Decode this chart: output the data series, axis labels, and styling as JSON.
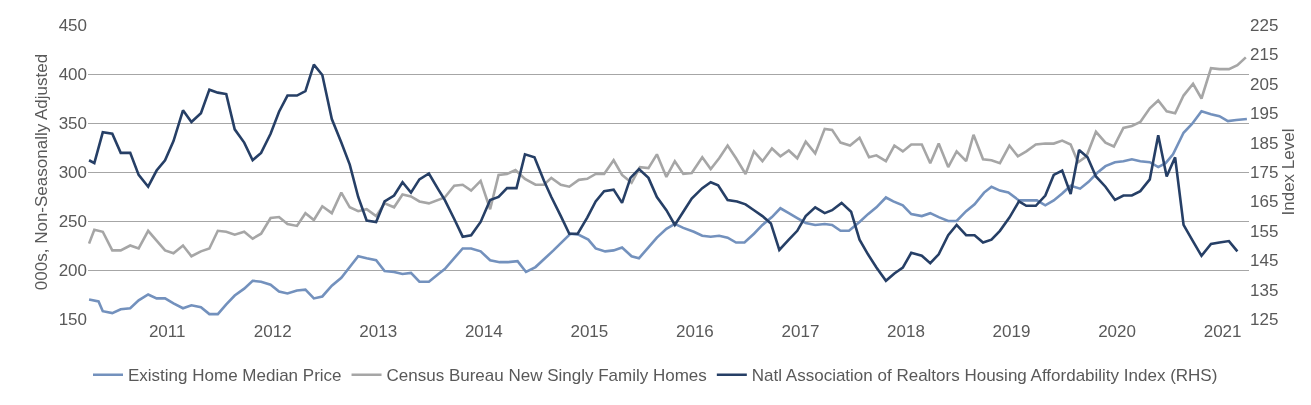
{
  "chart_data": {
    "type": "line",
    "ylabel": "000s, Non-Seasonally Adjusted",
    "y2label": "Index Level",
    "xlim": [
      2010.25,
      2021.25
    ],
    "xticks": [
      2011,
      2012,
      2013,
      2014,
      2015,
      2016,
      2017,
      2018,
      2019,
      2020,
      2021
    ],
    "ylim": [
      150,
      450
    ],
    "yticks": [
      150,
      200,
      250,
      300,
      350,
      400,
      450
    ],
    "y2lim": [
      125,
      225
    ],
    "y2ticks": [
      125,
      135,
      145,
      155,
      165,
      175,
      185,
      195,
      205,
      215,
      225
    ],
    "grid": "y",
    "legend": "bottom",
    "marker": "none",
    "line_style": "solid",
    "series": [
      {
        "name": "Existing Home Median Price",
        "color": "#7391bd",
        "x": [
          2010.26,
          2010.35,
          2010.39,
          2010.48,
          2010.56,
          2010.65,
          2010.73,
          2010.82,
          2010.9,
          2010.98,
          2011.06,
          2011.15,
          2011.23,
          2011.32,
          2011.4,
          2011.48,
          2011.56,
          2011.64,
          2011.73,
          2011.81,
          2011.89,
          2011.98,
          2012.06,
          2012.14,
          2012.23,
          2012.31,
          2012.39,
          2012.47,
          2012.56,
          2012.65,
          2012.73,
          2012.81,
          2012.89,
          2012.98,
          2013.06,
          2013.15,
          2013.23,
          2013.31,
          2013.39,
          2013.48,
          2013.57,
          2013.63,
          2013.8,
          2013.88,
          2013.97,
          2014.06,
          2014.15,
          2014.23,
          2014.32,
          2014.4,
          2014.49,
          2014.66,
          2014.82,
          2014.9,
          2014.99,
          2015.06,
          2015.15,
          2015.23,
          2015.31,
          2015.4,
          2015.47,
          2015.56,
          2015.64,
          2015.73,
          2015.81,
          2015.89,
          2015.99,
          2016.07,
          2016.15,
          2016.23,
          2016.31,
          2016.39,
          2016.47,
          2016.56,
          2016.64,
          2016.73,
          2016.81,
          2016.89,
          2016.97,
          2017.05,
          2017.14,
          2017.23,
          2017.3,
          2017.38,
          2017.46,
          2017.56,
          2017.64,
          2017.72,
          2017.81,
          2017.88,
          2017.97,
          2018.05,
          2018.15,
          2018.23,
          2018.31,
          2018.4,
          2018.48,
          2018.57,
          2018.65,
          2018.74,
          2018.81,
          2018.89,
          2018.97,
          2019.07,
          2019.15,
          2019.24,
          2019.32,
          2019.4,
          2019.48,
          2019.56,
          2019.65,
          2019.73,
          2019.81,
          2019.89,
          2019.98,
          2020.06,
          2020.14,
          2020.22,
          2020.31,
          2020.39,
          2020.46,
          2020.53,
          2020.63,
          2020.71,
          2020.8,
          2020.89,
          2020.97,
          2021.05,
          2021.13,
          2021.23
        ],
        "values": [
          170,
          168,
          158,
          156,
          160,
          161,
          169,
          175,
          171,
          171,
          166,
          161,
          164,
          162,
          155,
          155,
          165,
          174,
          181,
          189,
          188,
          185,
          178,
          176,
          179,
          180,
          171,
          173,
          184,
          192,
          203,
          214,
          212,
          210,
          199,
          198,
          196,
          197,
          188,
          188,
          196,
          201,
          222,
          222,
          219,
          210,
          208,
          208,
          209,
          198,
          203,
          220,
          237,
          236,
          231,
          222,
          219,
          220,
          223,
          214,
          212,
          223,
          233,
          242,
          247,
          243,
          239,
          235,
          234,
          235,
          233,
          228,
          228,
          237,
          246,
          254,
          263,
          258,
          253,
          248,
          246,
          247,
          246,
          240,
          240,
          249,
          257,
          264,
          274,
          270,
          266,
          257,
          255,
          258,
          254,
          250,
          250,
          260,
          267,
          279,
          285,
          281,
          279,
          271,
          271,
          271,
          266,
          271,
          278,
          286,
          283,
          290,
          299,
          306,
          310,
          311,
          313,
          311,
          310,
          305,
          309,
          318,
          340,
          349,
          362,
          359,
          357,
          352,
          353,
          354
        ]
      },
      {
        "name": "Census Bureau New Singly Family Homes",
        "color": "#a6a6a6",
        "x": [
          2010.26,
          2010.31,
          2010.39,
          2010.48,
          2010.56,
          2010.65,
          2010.73,
          2010.82,
          2010.9,
          2010.98,
          2011.06,
          2011.15,
          2011.23,
          2011.32,
          2011.4,
          2011.48,
          2011.56,
          2011.64,
          2011.73,
          2011.81,
          2011.89,
          2011.98,
          2012.06,
          2012.14,
          2012.23,
          2012.31,
          2012.39,
          2012.47,
          2012.56,
          2012.65,
          2012.73,
          2012.81,
          2012.89,
          2012.98,
          2013.06,
          2013.15,
          2013.23,
          2013.31,
          2013.39,
          2013.48,
          2013.63,
          2013.72,
          2013.8,
          2013.88,
          2013.97,
          2014.06,
          2014.14,
          2014.22,
          2014.3,
          2014.39,
          2014.49,
          2014.57,
          2014.64,
          2014.73,
          2014.81,
          2014.9,
          2014.98,
          2015.06,
          2015.14,
          2015.23,
          2015.31,
          2015.4,
          2015.48,
          2015.56,
          2015.64,
          2015.73,
          2015.81,
          2015.89,
          2015.97,
          2016.07,
          2016.15,
          2016.23,
          2016.31,
          2016.39,
          2016.48,
          2016.56,
          2016.64,
          2016.73,
          2016.81,
          2016.89,
          2016.97,
          2017.05,
          2017.14,
          2017.23,
          2017.3,
          2017.38,
          2017.47,
          2017.56,
          2017.65,
          2017.72,
          2017.81,
          2017.89,
          2017.97,
          2018.05,
          2018.15,
          2018.23,
          2018.31,
          2018.4,
          2018.48,
          2018.57,
          2018.64,
          2018.73,
          2018.81,
          2018.89,
          2018.98,
          2019.06,
          2019.14,
          2019.23,
          2019.32,
          2019.4,
          2019.48,
          2019.56,
          2019.63,
          2019.71,
          2019.8,
          2019.89,
          2019.97,
          2020.06,
          2020.14,
          2020.22,
          2020.31,
          2020.39,
          2020.47,
          2020.55,
          2020.63,
          2020.72,
          2020.8,
          2020.89,
          2020.97,
          2021.06,
          2021.14,
          2021.22
        ],
        "values": [
          227,
          241,
          239,
          220,
          220,
          225,
          222,
          240,
          230,
          220,
          217,
          225,
          214,
          219,
          222,
          240,
          239,
          236,
          239,
          232,
          237,
          253,
          254,
          247,
          245,
          258,
          251,
          265,
          258,
          279,
          264,
          260,
          262,
          255,
          268,
          264,
          277,
          275,
          270,
          268,
          274,
          286,
          287,
          281,
          291,
          262,
          297,
          298,
          302,
          293,
          287,
          287,
          294,
          287,
          285,
          292,
          293,
          298,
          298,
          312,
          297,
          289,
          305,
          304,
          318,
          295,
          311,
          298,
          299,
          315,
          303,
          314,
          327,
          314,
          298,
          321,
          311,
          324,
          316,
          322,
          314,
          331,
          319,
          344,
          343,
          330,
          327,
          335,
          315,
          317,
          311,
          327,
          321,
          328,
          328,
          309,
          329,
          305,
          321,
          311,
          338,
          313,
          312,
          309,
          327,
          316,
          321,
          328,
          329,
          329,
          332,
          328,
          310,
          316,
          341,
          330,
          326,
          345,
          347,
          351,
          365,
          373,
          362,
          360,
          378,
          390,
          375,
          406,
          405,
          405,
          409,
          417
        ]
      },
      {
        "name": "Natl Association of Realtors Housing Affordability Index (RHS)",
        "color": "#263f66",
        "axis": "y2",
        "x": [
          2010.26,
          2010.31,
          2010.39,
          2010.48,
          2010.56,
          2010.65,
          2010.73,
          2010.82,
          2010.9,
          2010.98,
          2011.06,
          2011.15,
          2011.23,
          2011.32,
          2011.4,
          2011.48,
          2011.56,
          2011.64,
          2011.73,
          2011.81,
          2011.89,
          2011.98,
          2012.06,
          2012.14,
          2012.23,
          2012.31,
          2012.39,
          2012.47,
          2012.56,
          2012.65,
          2012.73,
          2012.81,
          2012.89,
          2012.98,
          2013.06,
          2013.15,
          2013.23,
          2013.31,
          2013.39,
          2013.48,
          2013.57,
          2013.63,
          2013.72,
          2013.8,
          2013.88,
          2013.97,
          2014.06,
          2014.14,
          2014.22,
          2014.31,
          2014.39,
          2014.48,
          2014.57,
          2014.64,
          2014.73,
          2014.81,
          2014.89,
          2014.98,
          2015.06,
          2015.14,
          2015.23,
          2015.31,
          2015.39,
          2015.47,
          2015.56,
          2015.64,
          2015.73,
          2015.81,
          2015.89,
          2015.97,
          2016.07,
          2016.15,
          2016.22,
          2016.31,
          2016.4,
          2016.48,
          2016.56,
          2016.64,
          2016.72,
          2016.8,
          2016.89,
          2016.97,
          2017.05,
          2017.14,
          2017.23,
          2017.3,
          2017.39,
          2017.48,
          2017.56,
          2017.64,
          2017.72,
          2017.81,
          2017.89,
          2017.97,
          2018.05,
          2018.15,
          2018.23,
          2018.31,
          2018.4,
          2018.48,
          2018.57,
          2018.65,
          2018.73,
          2018.81,
          2018.89,
          2018.98,
          2019.07,
          2019.14,
          2019.23,
          2019.32,
          2019.4,
          2019.48,
          2019.56,
          2019.64,
          2019.72,
          2019.8,
          2019.89,
          2019.98,
          2020.06,
          2020.14,
          2020.22,
          2020.31,
          2020.39,
          2020.47,
          2020.55,
          2020.63,
          2020.71,
          2020.8,
          2020.89,
          2020.97,
          2021.06,
          2021.14
        ],
        "values": [
          179,
          178,
          188.5,
          188,
          181.5,
          181.5,
          174,
          170,
          175.5,
          179,
          185.5,
          196,
          192,
          195,
          203,
          202,
          201.5,
          189.5,
          185,
          179,
          181.5,
          188,
          195.5,
          201,
          201,
          202.5,
          211.5,
          208,
          193,
          185,
          177.5,
          166.5,
          158.5,
          158,
          165,
          167,
          171.5,
          168,
          172.5,
          174.5,
          169,
          165.5,
          159,
          153,
          153.5,
          158,
          165.5,
          166.5,
          169.5,
          169.5,
          181,
          180,
          172,
          166.5,
          160,
          154,
          154,
          159.5,
          165,
          168.5,
          169,
          164.5,
          173,
          176,
          173,
          166.5,
          162,
          157,
          161.5,
          166,
          169.5,
          171.5,
          170.5,
          165.5,
          165,
          164,
          162,
          160,
          157.5,
          148.5,
          152,
          155,
          160,
          163,
          161,
          162,
          164.5,
          161.5,
          152,
          147,
          142.5,
          138,
          140.5,
          142.5,
          147.5,
          146.5,
          144,
          147,
          153.5,
          157,
          153.5,
          153.5,
          151,
          152,
          155,
          159.5,
          165,
          163.5,
          163.5,
          167,
          174,
          175.5,
          167.5,
          182.5,
          180,
          173.5,
          170,
          165.5,
          167,
          167,
          168.5,
          172.5,
          187.5,
          173.5,
          180,
          157,
          152,
          146.5,
          150.5,
          151,
          151.5,
          148
        ]
      }
    ]
  }
}
